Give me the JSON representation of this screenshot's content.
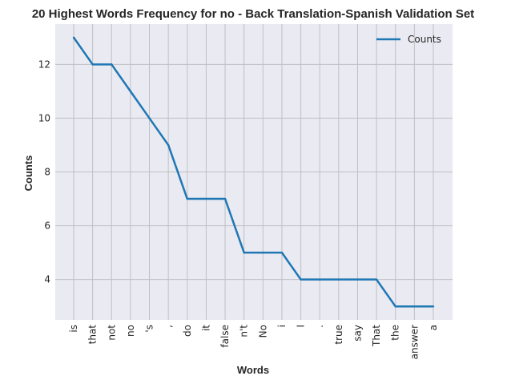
{
  "chart_data": {
    "type": "line",
    "title": "20 Highest Words Frequency for no - Back Translation-Spanish Validation Set",
    "xlabel": "Words",
    "ylabel": "Counts",
    "categories": [
      "is",
      "that",
      "not",
      "no",
      "'s",
      ",",
      "do",
      "it",
      "false",
      "n't",
      "No",
      "i",
      "I",
      ".",
      "true",
      "say",
      "That",
      "the",
      "answer",
      "a"
    ],
    "series": [
      {
        "name": "Counts",
        "color": "#1f77b4",
        "values": [
          13,
          12,
          12,
          11,
          10,
          9,
          7,
          7,
          7,
          5,
          5,
          5,
          4,
          4,
          4,
          4,
          4,
          3,
          3,
          3
        ]
      }
    ],
    "yticks": [
      4,
      6,
      8,
      10,
      12
    ],
    "ylim": [
      2.5,
      13.5
    ],
    "grid": true,
    "legend_position": "top-right",
    "plot_background": "#eaeaf2",
    "grid_color": "#bfbfc4"
  }
}
